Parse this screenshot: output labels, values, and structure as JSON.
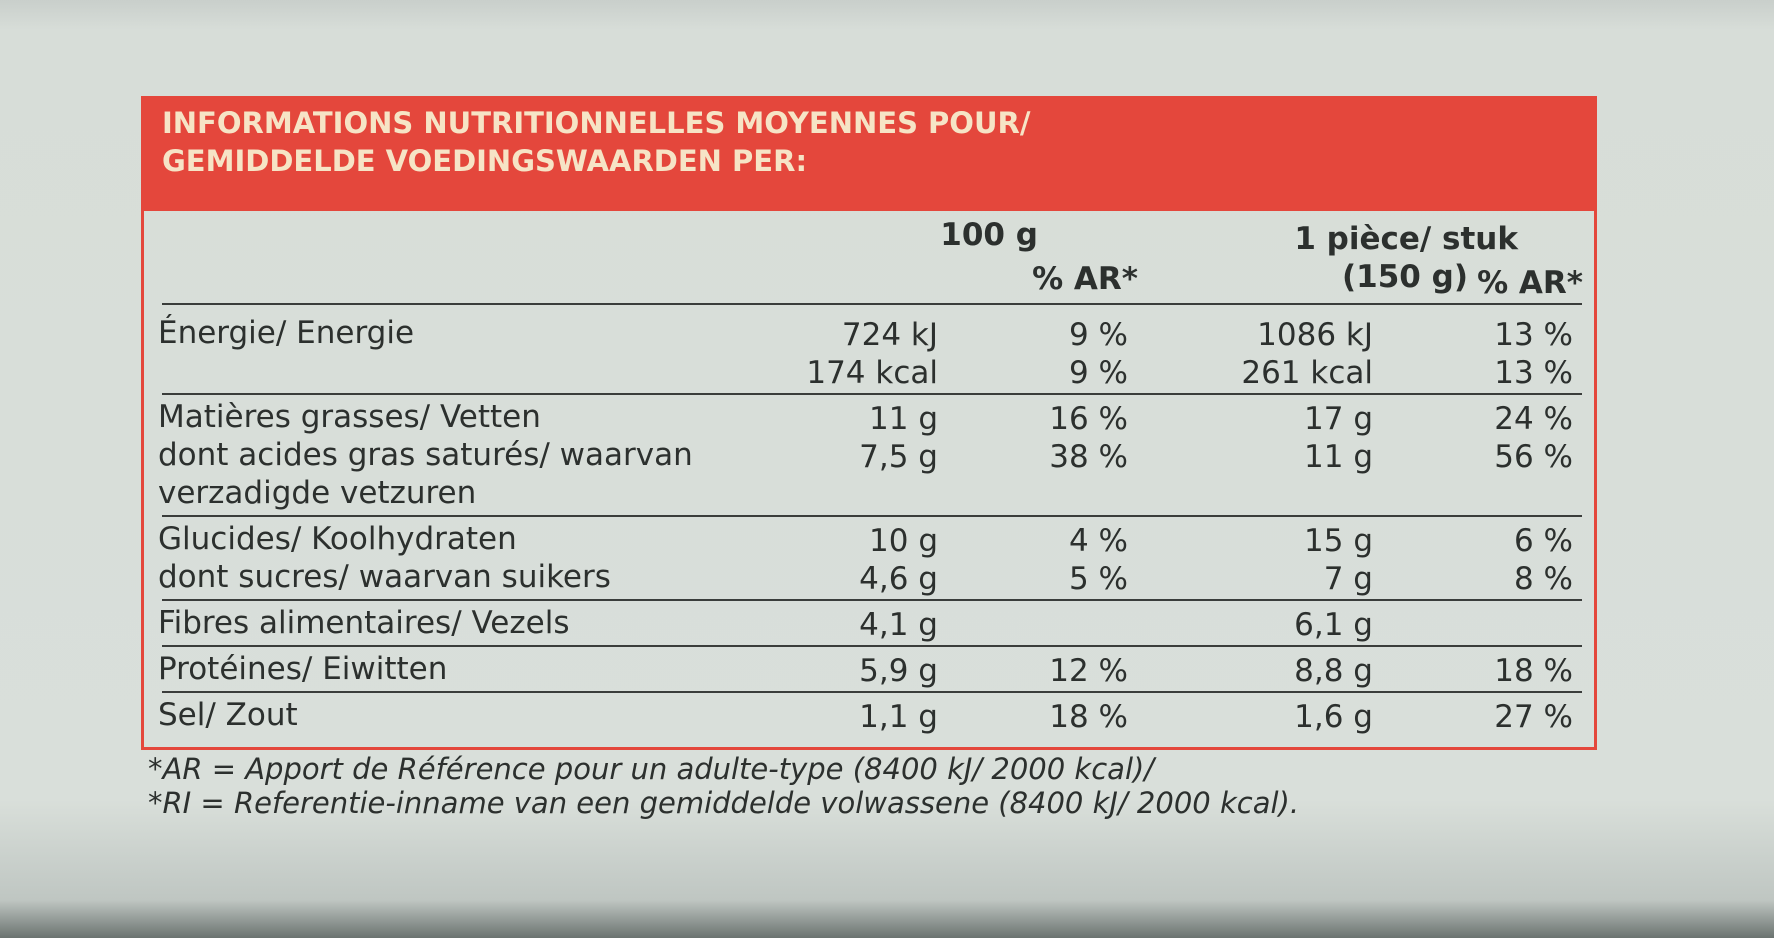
{
  "header": {
    "lines": [
      "INFORMATIONS NUTRITIONNELLES MOYENNES POUR/",
      "GEMIDDELDE VOEDINGSWAARDEN PER:"
    ]
  },
  "table": {
    "columns": {
      "per_100g": "100 g",
      "ri_100g": "% AR*",
      "per_portion": [
        "1 pièce/ stuk",
        "(150 g)"
      ],
      "ri_portion": "% AR*"
    },
    "sections": [
      {
        "rows": [
          {
            "label": "Énergie/ Energie",
            "per_100g": "724 kJ",
            "ri_100g": "9 %",
            "per_portion": "1086 kJ",
            "ri_portion": "13 %"
          },
          {
            "per_100g": "174 kcal",
            "ri_100g": "9 %",
            "per_portion": "261 kcal",
            "ri_portion": "13 %"
          }
        ]
      },
      {
        "rows": [
          {
            "label": "Matières grasses/ Vetten",
            "per_100g": "11 g",
            "ri_100g": "16 %",
            "per_portion": "17 g",
            "ri_portion": "24 %"
          },
          {
            "label": "dont acides gras saturés/ waarvan",
            "per_100g": "7,5 g",
            "ri_100g": "38 %",
            "per_portion": "11 g",
            "ri_portion": "56 %"
          },
          {
            "label": "verzadigde vetzuren"
          }
        ]
      },
      {
        "rows": [
          {
            "label": "Glucides/ Koolhydraten",
            "per_100g": "10 g",
            "ri_100g": "4 %",
            "per_portion": "15 g",
            "ri_portion": "6 %"
          },
          {
            "label": "dont sucres/ waarvan suikers",
            "per_100g": "4,6 g",
            "ri_100g": "5 %",
            "per_portion": "7 g",
            "ri_portion": "8 %"
          }
        ]
      },
      {
        "rows": [
          {
            "label": "Fibres alimentaires/ Vezels",
            "per_100g": "4,1 g",
            "per_portion": "6,1 g"
          }
        ]
      },
      {
        "rows": [
          {
            "label": "Protéines/ Eiwitten",
            "per_100g": "5,9 g",
            "ri_100g": "12 %",
            "per_portion": "8,8 g",
            "ri_portion": "18 %"
          }
        ]
      },
      {
        "rows": [
          {
            "label": "Sel/ Zout",
            "per_100g": "1,1 g",
            "ri_100g": "18 %",
            "per_portion": "1,6 g",
            "ri_portion": "27 %"
          }
        ]
      }
    ]
  },
  "footnote": [
    "*AR = Apport de Référence pour un adulte-type (8400 kJ/ 2000 kcal)/",
    "*RI = Referentie-inname van een gemiddelde volwassene (8400 kJ/ 2000 kcal)."
  ]
}
